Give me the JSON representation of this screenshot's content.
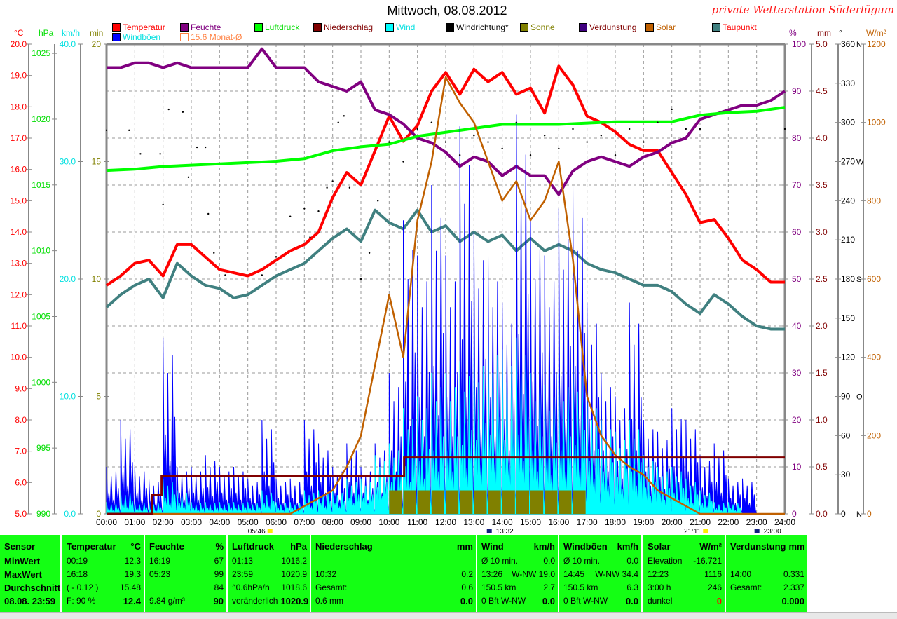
{
  "header": {
    "title": "Mittwoch, 08.08.2012",
    "station": "private Wetterstation Süderlügum"
  },
  "legend": [
    {
      "label": "Temperatur",
      "color": "#ff0000",
      "text_color": "#ff0000"
    },
    {
      "label": "Feuchte",
      "color": "#800080",
      "text_color": "#800080"
    },
    {
      "label": "Luftdruck",
      "color": "#00ff00",
      "text_color": "#00dd00"
    },
    {
      "label": "Niederschlag",
      "color": "#800000",
      "text_color": "#800000"
    },
    {
      "label": "Wind",
      "color": "#00ffff",
      "text_color": "#00e0e0"
    },
    {
      "label": "Windrichtung*",
      "color": "#000000",
      "text_color": "#000000"
    },
    {
      "label": "Sonne",
      "color": "#808000",
      "text_color": "#808000"
    },
    {
      "label": "Verdunstung",
      "color": "#400080",
      "text_color": "#800000"
    },
    {
      "label": "Solar",
      "color": "#c06000",
      "text_color": "#c06000"
    },
    {
      "label": "Taupunkt",
      "color": "#408080",
      "text_color": "#ff0000"
    },
    {
      "label": "Windböen",
      "color": "#0000ff",
      "text_color": "#00e0e0"
    },
    {
      "label": "15.6 Monat-Ø",
      "color": "#ff8040",
      "text_color": "#ff8040"
    }
  ],
  "chart_data": {
    "type": "line",
    "title": "Mittwoch, 08.08.2012",
    "x_ticks": [
      "00:00",
      "01:00",
      "02:00",
      "03:00",
      "04:00",
      "05:00",
      "06:00",
      "07:00",
      "08:00",
      "09:00",
      "10:00",
      "11:00",
      "12:00",
      "13:00",
      "14:00",
      "15:00",
      "16:00",
      "17:00",
      "18:00",
      "19:00",
      "20:00",
      "21:00",
      "22:00",
      "23:00",
      "24:00"
    ],
    "x_range_hours": [
      0,
      24
    ],
    "events": [
      {
        "label": "05:46",
        "hour": 5.77,
        "kind": "sunrise"
      },
      {
        "label": "13:32",
        "hour": 13.53,
        "kind": "moon"
      },
      {
        "label": "21:11",
        "hour": 21.18,
        "kind": "sunset"
      },
      {
        "label": "23:00",
        "hour": 23.0,
        "kind": "moon"
      }
    ],
    "axes": {
      "temp": {
        "unit": "°C",
        "range": [
          5,
          20
        ],
        "ticks": [
          "5.0",
          "6.0",
          "7.0",
          "8.0",
          "9.0",
          "10.0",
          "11.0",
          "12.0",
          "13.0",
          "14.0",
          "15.0",
          "16.0",
          "17.0",
          "18.0",
          "19.0",
          "20.0"
        ],
        "color": "#ff0000"
      },
      "pressure": {
        "unit": "hPa",
        "range": [
          990,
          1025.7
        ],
        "ticks": [
          "990",
          "995",
          "1000",
          "1005",
          "1010",
          "1015",
          "1020",
          "1025"
        ],
        "color": "#00dd00"
      },
      "wind": {
        "unit": "km/h",
        "range": [
          0,
          40
        ],
        "ticks": [
          "0.0",
          "10.0",
          "20.0",
          "30.0",
          "40.0"
        ],
        "color": "#00e0e0"
      },
      "sun": {
        "unit": "min",
        "range": [
          0,
          20
        ],
        "ticks": [
          "0",
          "5",
          "10",
          "15",
          "20"
        ],
        "color": "#808000"
      },
      "humidity": {
        "unit": "%",
        "range": [
          0,
          100
        ],
        "ticks": [
          "0",
          "10",
          "20",
          "30",
          "40",
          "50",
          "60",
          "70",
          "80",
          "90",
          "100"
        ],
        "color": "#800080"
      },
      "rain": {
        "unit": "mm",
        "range": [
          0,
          5
        ],
        "ticks": [
          "0.0",
          "0.5",
          "1.0",
          "1.5",
          "2.0",
          "2.5",
          "3.0",
          "3.5",
          "4.0",
          "4.5",
          "5.0"
        ],
        "color": "#800000"
      },
      "direction": {
        "unit": "°",
        "range": [
          0,
          360
        ],
        "ticks": [
          "0",
          "30",
          "60",
          "90",
          "120",
          "150",
          "180",
          "210",
          "240",
          "270",
          "300",
          "330",
          "360"
        ],
        "compass": {
          "0": "N",
          "90": "O",
          "180": "S",
          "270": "W",
          "360": "N"
        },
        "color": "#000000"
      },
      "solar": {
        "unit": "W/m²",
        "range": [
          0,
          1200
        ],
        "ticks": [
          "0",
          "200",
          "400",
          "600",
          "800",
          "1000",
          "1200"
        ],
        "color": "#c06000"
      }
    },
    "monthly_avg_temp": 15.6,
    "series": [
      {
        "name": "Temperatur",
        "axis": "temp",
        "color": "#ff0000",
        "step_hours": 0.5,
        "values": [
          12.3,
          12.6,
          13.0,
          13.1,
          12.6,
          13.6,
          13.6,
          13.2,
          12.8,
          12.7,
          12.6,
          12.8,
          13.1,
          13.4,
          13.6,
          14.0,
          15.1,
          15.9,
          15.5,
          16.6,
          17.7,
          16.9,
          17.4,
          18.5,
          19.1,
          18.4,
          19.2,
          18.8,
          19.1,
          18.4,
          18.6,
          17.8,
          19.3,
          18.7,
          17.7,
          17.5,
          17.2,
          16.8,
          16.6,
          16.6,
          15.9,
          15.2,
          14.3,
          14.4,
          13.8,
          13.1,
          12.8,
          12.4,
          12.4
        ]
      },
      {
        "name": "Taupunkt",
        "axis": "temp",
        "color": "#408080",
        "step_hours": 0.5,
        "values": [
          11.6,
          12.0,
          12.3,
          12.5,
          11.9,
          13.0,
          12.6,
          12.3,
          12.2,
          11.9,
          12.0,
          12.3,
          12.6,
          12.8,
          13.0,
          13.4,
          13.8,
          14.1,
          13.7,
          14.7,
          14.3,
          14.1,
          14.7,
          14.0,
          14.2,
          13.7,
          14.0,
          13.7,
          13.9,
          13.4,
          13.8,
          13.4,
          13.6,
          13.4,
          13.0,
          12.8,
          12.7,
          12.5,
          12.3,
          12.3,
          12.1,
          11.7,
          11.4,
          12.0,
          11.7,
          11.3,
          11.0,
          10.9,
          10.9
        ]
      },
      {
        "name": "Feuchte",
        "axis": "humidity",
        "color": "#800080",
        "step_hours": 0.5,
        "values": [
          95,
          95,
          96,
          96,
          95,
          96,
          95,
          95,
          95,
          95,
          95,
          99,
          95,
          95,
          95,
          92,
          91,
          90,
          92,
          86,
          85,
          83,
          80,
          79,
          77,
          74,
          76,
          75,
          72,
          74,
          72,
          72,
          68,
          73,
          75,
          76,
          75,
          74,
          76,
          77,
          79,
          80,
          84,
          85,
          86,
          87,
          87,
          88,
          90
        ]
      },
      {
        "name": "Luftdruck",
        "axis": "pressure",
        "color": "#00ff00",
        "step_hours": 1,
        "values": [
          1016.1,
          1016.2,
          1016.4,
          1016.5,
          1016.6,
          1016.7,
          1016.8,
          1017.0,
          1017.6,
          1017.9,
          1018.1,
          1018.7,
          1019.0,
          1019.3,
          1019.6,
          1019.6,
          1019.6,
          1019.7,
          1019.8,
          1019.8,
          1019.8,
          1020.3,
          1020.5,
          1020.6,
          1020.9
        ]
      },
      {
        "name": "Windböen",
        "axis": "wind",
        "color": "#0000ff",
        "step_hours": 0.5,
        "type": "bar",
        "values": [
          4,
          8,
          4,
          3,
          15,
          4,
          4,
          5,
          4,
          4,
          3,
          8,
          3,
          3,
          8,
          6,
          4,
          6,
          4,
          6,
          12,
          25,
          22,
          28,
          22,
          33,
          24,
          22,
          18,
          34,
          25,
          22,
          26,
          28,
          18,
          12,
          10,
          18,
          8,
          7,
          9,
          8,
          5,
          6,
          3,
          3,
          0,
          0
        ]
      },
      {
        "name": "Wind",
        "axis": "wind",
        "color": "#00ffff",
        "step_hours": 0.5,
        "type": "bar",
        "values": [
          1,
          2,
          1,
          1,
          3,
          2,
          1,
          1,
          1,
          1,
          1,
          2,
          1,
          1,
          2,
          2,
          2,
          3,
          3,
          5,
          6,
          9,
          10,
          12,
          12,
          13,
          14,
          15,
          14,
          15,
          12,
          11,
          12,
          13,
          10,
          8,
          7,
          8,
          5,
          4,
          4,
          3,
          2,
          1,
          1,
          0,
          0,
          0
        ]
      },
      {
        "name": "Solar",
        "axis": "solar",
        "color": "#c06000",
        "step_hours": 0.5,
        "values": [
          0,
          0,
          0,
          0,
          0,
          0,
          0,
          0,
          0,
          0,
          0,
          0,
          0,
          0,
          20,
          40,
          60,
          120,
          200,
          380,
          560,
          400,
          750,
          900,
          1116,
          1050,
          1000,
          900,
          800,
          850,
          750,
          800,
          900,
          650,
          300,
          200,
          150,
          120,
          100,
          60,
          40,
          20,
          0,
          0,
          0,
          0,
          0,
          0,
          0
        ]
      },
      {
        "name": "Sonne",
        "axis": "sun",
        "color": "#808000",
        "step_hours": 0.5,
        "type": "bar",
        "values": [
          0,
          0,
          0,
          0,
          0,
          0,
          0,
          0,
          0,
          0,
          0,
          0,
          0,
          0,
          0,
          0,
          0,
          0,
          0,
          0,
          1,
          1,
          1,
          1,
          1,
          1,
          1,
          1,
          1,
          1,
          1,
          1,
          1,
          1,
          0,
          0,
          0,
          0,
          0,
          0,
          0,
          0,
          0,
          0,
          0,
          0,
          0,
          0
        ]
      },
      {
        "name": "Niederschlag",
        "axis": "rain",
        "color": "#800000",
        "type": "step",
        "points": [
          [
            0,
            0
          ],
          [
            1.6,
            0.2
          ],
          [
            1.95,
            0.4
          ],
          [
            10.53,
            0.6
          ],
          [
            24,
            0.6
          ]
        ]
      },
      {
        "name": "Windrichtung",
        "axis": "direction",
        "color": "#000000",
        "type": "dots",
        "points": [
          [
            0,
            294
          ],
          [
            0.8,
            294
          ],
          [
            1.2,
            276
          ],
          [
            1.9,
            276
          ],
          [
            2.0,
            237
          ],
          [
            2.2,
            310
          ],
          [
            2.7,
            308
          ],
          [
            2.9,
            258
          ],
          [
            3.2,
            281
          ],
          [
            3.5,
            281
          ],
          [
            3.6,
            230
          ],
          [
            3.8,
            200
          ],
          [
            4.2,
            183
          ],
          [
            5.5,
            183
          ],
          [
            6.0,
            197
          ],
          [
            6.5,
            228
          ],
          [
            7.0,
            234
          ],
          [
            7.2,
            212
          ],
          [
            7.5,
            232
          ],
          [
            7.8,
            250
          ],
          [
            8.0,
            255
          ],
          [
            8.2,
            300
          ],
          [
            8.4,
            305
          ],
          [
            8.6,
            250
          ],
          [
            9.0,
            180
          ],
          [
            9.3,
            200
          ],
          [
            9.6,
            240
          ],
          [
            10,
            285
          ],
          [
            10.5,
            270
          ],
          [
            11,
            295
          ],
          [
            11.5,
            300
          ],
          [
            12,
            285
          ],
          [
            12.5,
            275
          ],
          [
            13,
            290
          ],
          [
            13.5,
            285
          ],
          [
            14,
            280
          ],
          [
            14.5,
            300
          ],
          [
            15,
            275
          ],
          [
            15.5,
            290
          ],
          [
            16,
            280
          ],
          [
            16.5,
            295
          ],
          [
            17,
            285
          ],
          [
            17.5,
            290
          ],
          [
            18,
            275
          ],
          [
            18.5,
            295
          ],
          [
            19,
            285
          ],
          [
            19.5,
            300
          ],
          [
            20,
            310
          ],
          [
            20.5,
            295
          ],
          [
            21,
            295
          ],
          [
            24,
            295
          ]
        ]
      }
    ]
  },
  "table": {
    "sensor": {
      "header": "Sensor",
      "rows": [
        "MinWert",
        "MaxWert",
        "Durchschnitt",
        "08.08. 23:59"
      ]
    },
    "temperature": {
      "header": "Temperatur",
      "unit": "°C",
      "rows": [
        [
          "00:19",
          "12.3"
        ],
        [
          "16:18",
          "19.3"
        ],
        [
          "( - 0.12 )",
          "15.48"
        ],
        [
          "F: 90 %",
          "12.4"
        ]
      ]
    },
    "humidity": {
      "header": "Feuchte",
      "unit": "%",
      "rows": [
        [
          "16:19",
          "67"
        ],
        [
          "05:23",
          "99"
        ],
        [
          "",
          "84"
        ],
        [
          "9.84 g/m³",
          "90"
        ]
      ]
    },
    "pressure": {
      "header": "Luftdruck",
      "unit": "hPa",
      "rows": [
        [
          "01:13",
          "1016.2"
        ],
        [
          "23:59",
          "1020.9"
        ],
        [
          "^0.6hPa/h",
          "1018.6"
        ],
        [
          "veränderlich",
          "1020.9"
        ]
      ]
    },
    "rain": {
      "header": "Niederschlag",
      "unit": "mm",
      "rows": [
        [
          "",
          ""
        ],
        [
          "10:32",
          "0.2"
        ],
        [
          "Gesamt:",
          "0.6"
        ],
        [
          "0.6 mm",
          "0.0"
        ]
      ]
    },
    "wind": {
      "header": "Wind",
      "unit": "km/h",
      "rows": [
        [
          "Ø 10 min.",
          "0.0"
        ],
        [
          "13:26",
          "W-NW 19.0"
        ],
        [
          "150.5 km",
          "2.7"
        ],
        [
          "0 Bft W-NW",
          "0.0"
        ]
      ]
    },
    "gusts": {
      "header": "Windböen",
      "unit": "km/h",
      "rows": [
        [
          "Ø 10 min.",
          "0.0"
        ],
        [
          "14:45",
          "W-NW 34.4"
        ],
        [
          "150.5 km",
          "6.3"
        ],
        [
          "0 Bft W-NW",
          "0.0"
        ]
      ]
    },
    "solar": {
      "header": "Solar",
      "unit": "W/m²",
      "rows": [
        [
          "Elevation",
          "-16.721"
        ],
        [
          "12:23",
          "1116"
        ],
        [
          "3:00 h",
          "246"
        ],
        [
          "dunkel",
          "0"
        ]
      ]
    },
    "evaporation": {
      "header": "Verdunstung",
      "unit": "mm",
      "rows": [
        [
          "",
          ""
        ],
        [
          "14:00",
          "0.331"
        ],
        [
          "Gesamt:",
          "2.337"
        ],
        [
          "",
          "0.000"
        ]
      ]
    }
  }
}
